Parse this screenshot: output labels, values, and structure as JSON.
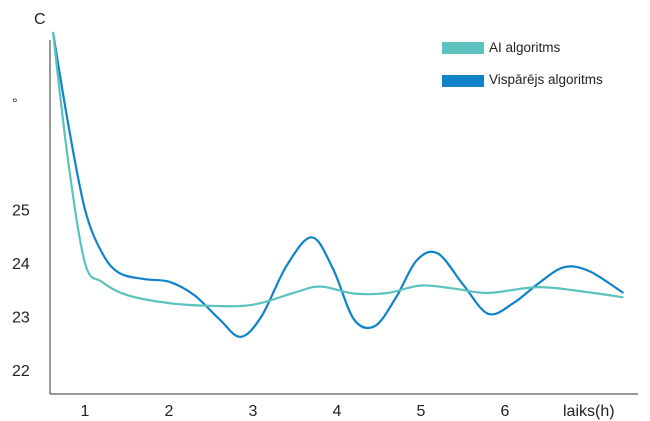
{
  "chart_data": {
    "type": "line",
    "title": "",
    "y_unit_letter": "C",
    "y_unit_degree": "°",
    "xlabel": "laiks(h)",
    "ylabel": "",
    "x_ticks": [
      "1",
      "2",
      "3",
      "4",
      "5",
      "6"
    ],
    "y_ticks": [
      "22",
      "23",
      "24",
      "25"
    ],
    "xlim": [
      0.6,
      7.5
    ],
    "ylim": [
      21.7,
      29.3
    ],
    "grid": false,
    "legend_position": "top-right",
    "series": [
      {
        "name": "AI algoritms",
        "color": "#5bc2bd",
        "points": [
          [
            0.62,
            28.3
          ],
          [
            0.8,
            25.9
          ],
          [
            1.0,
            24.0
          ],
          [
            1.2,
            23.65
          ],
          [
            1.5,
            23.4
          ],
          [
            2.0,
            23.25
          ],
          [
            2.5,
            23.2
          ],
          [
            3.0,
            23.22
          ],
          [
            3.5,
            23.45
          ],
          [
            3.8,
            23.56
          ],
          [
            4.2,
            23.43
          ],
          [
            4.6,
            23.44
          ],
          [
            5.0,
            23.58
          ],
          [
            5.4,
            23.52
          ],
          [
            5.8,
            23.44
          ],
          [
            6.4,
            23.55
          ],
          [
            7.0,
            23.45
          ],
          [
            7.4,
            23.36
          ]
        ]
      },
      {
        "name": "Vispārējs algoritms",
        "color": "#0f83c9",
        "points": [
          [
            0.62,
            28.3
          ],
          [
            0.8,
            26.6
          ],
          [
            1.0,
            25.0
          ],
          [
            1.2,
            24.2
          ],
          [
            1.4,
            23.82
          ],
          [
            1.7,
            23.7
          ],
          [
            2.0,
            23.65
          ],
          [
            2.3,
            23.4
          ],
          [
            2.6,
            22.95
          ],
          [
            2.85,
            22.62
          ],
          [
            3.1,
            23.0
          ],
          [
            3.4,
            23.95
          ],
          [
            3.7,
            24.48
          ],
          [
            3.95,
            23.9
          ],
          [
            4.2,
            22.95
          ],
          [
            4.45,
            22.82
          ],
          [
            4.7,
            23.35
          ],
          [
            4.95,
            24.05
          ],
          [
            5.2,
            24.18
          ],
          [
            5.5,
            23.6
          ],
          [
            5.8,
            23.05
          ],
          [
            6.1,
            23.25
          ],
          [
            6.4,
            23.62
          ],
          [
            6.7,
            23.92
          ],
          [
            7.0,
            23.85
          ],
          [
            7.4,
            23.45
          ]
        ]
      }
    ]
  }
}
